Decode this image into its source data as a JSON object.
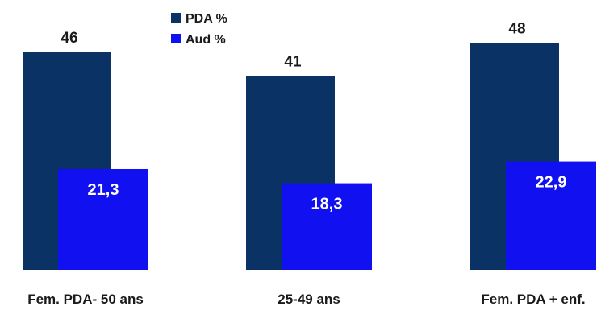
{
  "chart_data": {
    "type": "bar",
    "categories": [
      "Fem. PDA- 50 ans",
      "25-49 ans",
      "Fem. PDA + enf."
    ],
    "series": [
      {
        "name": "PDA %",
        "values": [
          46,
          41,
          48
        ],
        "color": "#0b3264"
      },
      {
        "name": "Aud %",
        "values": [
          21.3,
          18.3,
          22.9
        ],
        "color": "#1010f0"
      }
    ],
    "value_labels": [
      [
        "46",
        "41",
        "48"
      ],
      [
        "21,3",
        "18,3",
        "22,9"
      ]
    ],
    "title": "",
    "xlabel": "",
    "ylabel": "",
    "ylim": [
      0,
      54
    ],
    "grid": false,
    "legend": "top-center",
    "bar_layout": "overlapped"
  }
}
